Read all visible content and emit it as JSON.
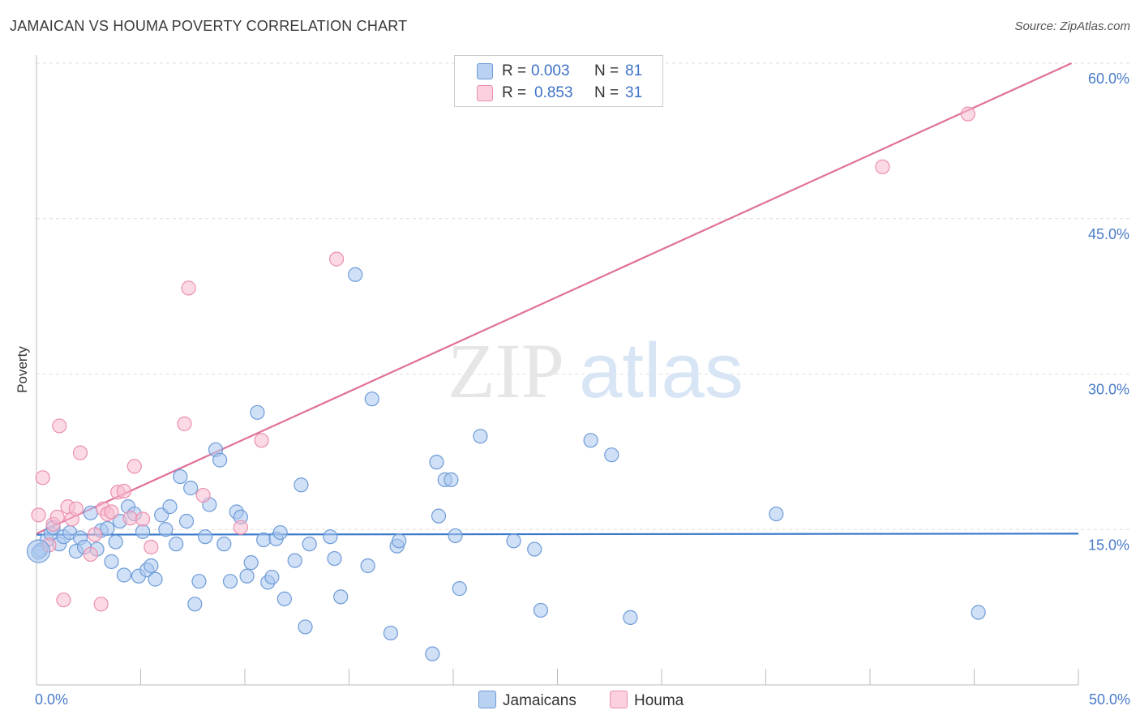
{
  "header": {
    "title": "JAMAICAN VS HOUMA POVERTY CORRELATION CHART",
    "source": "Source: ZipAtlas.com"
  },
  "watermark": {
    "part1": "ZIP",
    "part2": "atlas"
  },
  "legend": {
    "rows": [
      {
        "r_label": "R =",
        "r_value": "0.003",
        "n_label": "N =",
        "n_value": "81"
      },
      {
        "r_label": "R =",
        "r_value": "0.853",
        "n_label": "N =",
        "n_value": "31"
      }
    ]
  },
  "colors": {
    "jamaicans_fill": "#a9c7ee",
    "jamaicans_stroke": "#6d9bd8",
    "jamaicans_line": "#3a78c9",
    "houma_fill": "#f7bcd0",
    "houma_stroke": "#eb8fae",
    "houma_line": "#e07099",
    "tick_label": "#4a7cc9",
    "grid": "#dddddd"
  },
  "chart_data": {
    "type": "scatter",
    "title": "JAMAICAN VS HOUMA POVERTY CORRELATION CHART",
    "xlabel": "",
    "ylabel": "Poverty",
    "xlim": [
      0,
      50
    ],
    "ylim": [
      0,
      60
    ],
    "x_tick_labels": [
      "0.0%",
      "50.0%"
    ],
    "y_ticks": [
      15,
      30,
      45,
      60
    ],
    "y_tick_labels": [
      "15.0%",
      "30.0%",
      "45.0%",
      "60.0%"
    ],
    "grid": true,
    "legend_position": "top-center",
    "series": [
      {
        "name": "Jamaicans",
        "trend": {
          "x": [
            0,
            50
          ],
          "y": [
            14.5,
            14.6
          ]
        },
        "points": [
          [
            0.2,
            13.0
          ],
          [
            0.5,
            14.0
          ],
          [
            0.7,
            14.6
          ],
          [
            0.8,
            15.2
          ],
          [
            1.1,
            13.6
          ],
          [
            1.3,
            14.3
          ],
          [
            1.6,
            14.7
          ],
          [
            1.9,
            12.9
          ],
          [
            2.1,
            14.2
          ],
          [
            2.3,
            13.3
          ],
          [
            2.6,
            16.6
          ],
          [
            2.9,
            13.1
          ],
          [
            3.1,
            14.9
          ],
          [
            3.4,
            15.1
          ],
          [
            3.6,
            11.9
          ],
          [
            3.8,
            13.8
          ],
          [
            4.0,
            15.8
          ],
          [
            4.2,
            10.6
          ],
          [
            4.4,
            17.2
          ],
          [
            4.7,
            16.5
          ],
          [
            4.9,
            10.5
          ],
          [
            5.1,
            14.8
          ],
          [
            5.3,
            11.1
          ],
          [
            5.5,
            11.5
          ],
          [
            5.7,
            10.2
          ],
          [
            6.0,
            16.4
          ],
          [
            6.2,
            15.0
          ],
          [
            6.4,
            17.2
          ],
          [
            6.7,
            13.6
          ],
          [
            6.9,
            20.1
          ],
          [
            7.2,
            15.8
          ],
          [
            7.4,
            19.0
          ],
          [
            7.6,
            7.8
          ],
          [
            7.8,
            10.0
          ],
          [
            8.1,
            14.3
          ],
          [
            8.3,
            17.4
          ],
          [
            8.6,
            22.7
          ],
          [
            8.8,
            21.7
          ],
          [
            9.0,
            13.6
          ],
          [
            9.3,
            10.0
          ],
          [
            9.6,
            16.7
          ],
          [
            9.8,
            16.2
          ],
          [
            10.1,
            10.5
          ],
          [
            10.3,
            11.8
          ],
          [
            10.6,
            26.3
          ],
          [
            10.9,
            14.0
          ],
          [
            11.1,
            9.9
          ],
          [
            11.3,
            10.4
          ],
          [
            11.5,
            14.1
          ],
          [
            11.7,
            14.7
          ],
          [
            11.9,
            8.3
          ],
          [
            12.4,
            12.0
          ],
          [
            12.7,
            19.3
          ],
          [
            12.9,
            5.6
          ],
          [
            13.1,
            13.6
          ],
          [
            14.1,
            14.3
          ],
          [
            14.3,
            12.2
          ],
          [
            14.6,
            8.5
          ],
          [
            15.3,
            39.6
          ],
          [
            15.9,
            11.5
          ],
          [
            16.1,
            27.6
          ],
          [
            17.0,
            5.0
          ],
          [
            17.3,
            13.4
          ],
          [
            17.4,
            13.9
          ],
          [
            19.0,
            3.0
          ],
          [
            19.2,
            21.5
          ],
          [
            19.3,
            16.3
          ],
          [
            19.6,
            19.8
          ],
          [
            19.9,
            19.8
          ],
          [
            20.1,
            14.4
          ],
          [
            20.3,
            9.3
          ],
          [
            21.3,
            24.0
          ],
          [
            22.9,
            13.9
          ],
          [
            23.9,
            13.1
          ],
          [
            24.2,
            7.2
          ],
          [
            26.6,
            23.6
          ],
          [
            27.6,
            22.2
          ],
          [
            28.5,
            6.5
          ],
          [
            35.5,
            16.5
          ],
          [
            45.2,
            7.0
          ],
          [
            0.1,
            12.8
          ]
        ]
      },
      {
        "name": "Houma",
        "trend": {
          "x": [
            0,
            50
          ],
          "y": [
            14.6,
            60.3
          ]
        },
        "points": [
          [
            0.1,
            16.4
          ],
          [
            0.3,
            20.0
          ],
          [
            0.6,
            13.5
          ],
          [
            0.8,
            15.5
          ],
          [
            1.0,
            16.2
          ],
          [
            1.1,
            25.0
          ],
          [
            1.3,
            8.2
          ],
          [
            1.5,
            17.2
          ],
          [
            1.7,
            16.0
          ],
          [
            1.9,
            17.0
          ],
          [
            2.1,
            22.4
          ],
          [
            2.6,
            12.6
          ],
          [
            2.8,
            14.5
          ],
          [
            3.1,
            7.8
          ],
          [
            3.2,
            17.0
          ],
          [
            3.4,
            16.5
          ],
          [
            3.6,
            16.7
          ],
          [
            3.9,
            18.6
          ],
          [
            4.2,
            18.7
          ],
          [
            4.5,
            16.1
          ],
          [
            4.7,
            21.1
          ],
          [
            5.1,
            16.0
          ],
          [
            5.5,
            13.3
          ],
          [
            7.1,
            25.2
          ],
          [
            7.3,
            38.3
          ],
          [
            8.0,
            18.3
          ],
          [
            9.8,
            15.2
          ],
          [
            10.8,
            23.6
          ],
          [
            14.4,
            41.1
          ],
          [
            40.6,
            50.0
          ],
          [
            44.7,
            55.1
          ]
        ]
      }
    ]
  },
  "bottom_legend": {
    "items": [
      "Jamaicans",
      "Houma"
    ]
  }
}
